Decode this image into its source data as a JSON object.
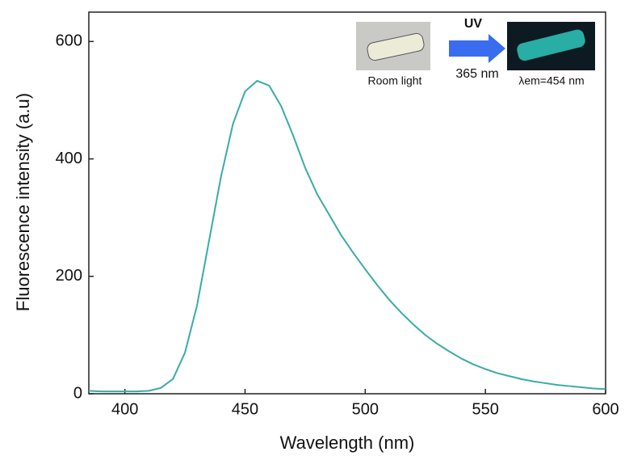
{
  "chart_data": {
    "type": "line",
    "x_label": "Wavelength (nm)",
    "y_label": "Fluorescence intensity (a.u)",
    "x": [
      385,
      390,
      395,
      400,
      405,
      410,
      415,
      420,
      425,
      430,
      435,
      440,
      445,
      450,
      455,
      460,
      465,
      470,
      475,
      480,
      485,
      490,
      495,
      500,
      505,
      510,
      515,
      520,
      525,
      530,
      535,
      540,
      545,
      550,
      555,
      560,
      565,
      570,
      575,
      580,
      585,
      590,
      595,
      600
    ],
    "series": [
      {
        "color": "#3aaba6",
        "values": [
          5,
          4,
          4,
          4,
          4,
          5,
          10,
          25,
          70,
          150,
          260,
          370,
          460,
          515,
          533,
          525,
          490,
          440,
          385,
          340,
          305,
          270,
          240,
          212,
          185,
          160,
          138,
          118,
          100,
          85,
          72,
          60,
          50,
          42,
          35,
          30,
          25,
          21,
          18,
          15,
          13,
          11,
          9,
          8
        ]
      }
    ],
    "xlim": [
      385,
      600
    ],
    "xticks": [
      400,
      450,
      500,
      550,
      600
    ],
    "ylim": [
      0,
      650
    ],
    "yticks": [
      0,
      200,
      400,
      600
    ],
    "annotations": {
      "uv": "UV",
      "excitation": "365 nm",
      "room": "Room light",
      "emission": "λem=454 nm"
    }
  }
}
